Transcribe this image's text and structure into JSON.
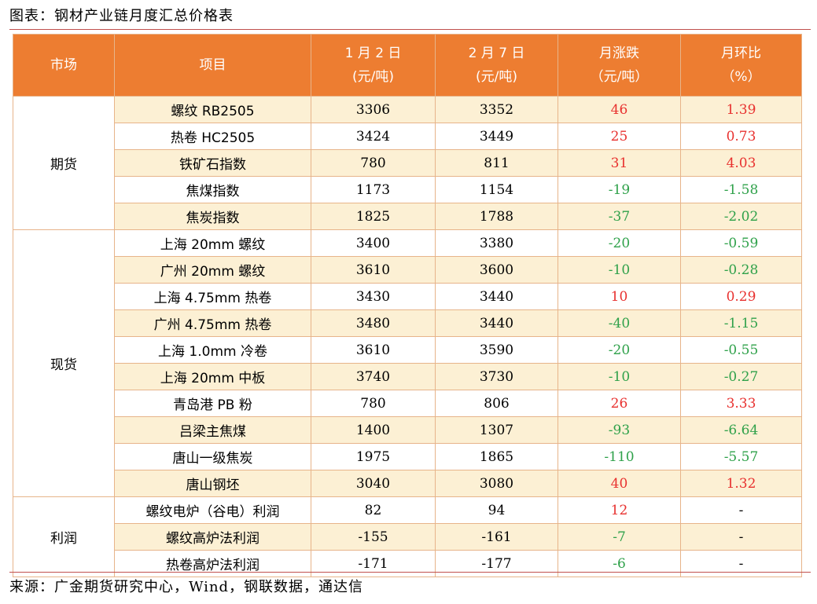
{
  "caption": "图表：钢材产业链月度汇总价格表",
  "source": "来源：广金期货研究中心，Wind，钢联数据，通达信",
  "colors": {
    "header_bg": "#ed7d31",
    "shade": "#fcf0d4",
    "up": "#e8312f",
    "down": "#2fa14a"
  },
  "headers": {
    "market": "市场",
    "item": "项目",
    "date1_line1": "1 月 2 日",
    "date1_line2": "(元/吨)",
    "date2_line1": "2 月 7 日",
    "date2_line2": "(元/吨)",
    "change_line1": "月涨跌",
    "change_line2": "（元/吨）",
    "pct_line1": "月环比",
    "pct_line2": "（%）"
  },
  "groups": {
    "futures": "期货",
    "spot": "现货",
    "profit": "利润"
  },
  "rows": [
    {
      "item": "螺纹 RB2505",
      "v1": "3306",
      "v2": "3352",
      "chg": "46",
      "pct": "1.39",
      "dir": "up"
    },
    {
      "item": "热卷 HC2505",
      "v1": "3424",
      "v2": "3449",
      "chg": "25",
      "pct": "0.73",
      "dir": "up"
    },
    {
      "item": "铁矿石指数",
      "v1": "780",
      "v2": "811",
      "chg": "31",
      "pct": "4.03",
      "dir": "up"
    },
    {
      "item": "焦煤指数",
      "v1": "1173",
      "v2": "1154",
      "chg": "-19",
      "pct": "-1.58",
      "dir": "down"
    },
    {
      "item": "焦炭指数",
      "v1": "1825",
      "v2": "1788",
      "chg": "-37",
      "pct": "-2.02",
      "dir": "down"
    },
    {
      "item": "上海 20mm 螺纹",
      "v1": "3400",
      "v2": "3380",
      "chg": "-20",
      "pct": "-0.59",
      "dir": "down"
    },
    {
      "item": "广州 20mm 螺纹",
      "v1": "3610",
      "v2": "3600",
      "chg": "-10",
      "pct": "-0.28",
      "dir": "down"
    },
    {
      "item": "上海 4.75mm 热卷",
      "v1": "3430",
      "v2": "3440",
      "chg": "10",
      "pct": "0.29",
      "dir": "up"
    },
    {
      "item": "广州 4.75mm 热卷",
      "v1": "3480",
      "v2": "3440",
      "chg": "-40",
      "pct": "-1.15",
      "dir": "down"
    },
    {
      "item": "上海 1.0mm 冷卷",
      "v1": "3610",
      "v2": "3590",
      "chg": "-20",
      "pct": "-0.55",
      "dir": "down"
    },
    {
      "item": "上海 20mm 中板",
      "v1": "3740",
      "v2": "3730",
      "chg": "-10",
      "pct": "-0.27",
      "dir": "down"
    },
    {
      "item": "青岛港 PB 粉",
      "v1": "780",
      "v2": "806",
      "chg": "26",
      "pct": "3.33",
      "dir": "up"
    },
    {
      "item": "吕梁主焦煤",
      "v1": "1400",
      "v2": "1307",
      "chg": "-93",
      "pct": "-6.64",
      "dir": "down"
    },
    {
      "item": "唐山一级焦炭",
      "v1": "1975",
      "v2": "1865",
      "chg": "-110",
      "pct": "-5.57",
      "dir": "down"
    },
    {
      "item": "唐山钢坯",
      "v1": "3040",
      "v2": "3080",
      "chg": "40",
      "pct": "1.32",
      "dir": "up"
    },
    {
      "item": "螺纹电炉（谷电）利润",
      "v1": "82",
      "v2": "94",
      "chg": "12",
      "pct": "-",
      "dir": "up"
    },
    {
      "item": "螺纹高炉法利润",
      "v1": "-155",
      "v2": "-161",
      "chg": "-7",
      "pct": "-",
      "dir": "down"
    },
    {
      "item": "热卷高炉法利润",
      "v1": "-171",
      "v2": "-177",
      "chg": "-6",
      "pct": "-",
      "dir": "down"
    }
  ]
}
